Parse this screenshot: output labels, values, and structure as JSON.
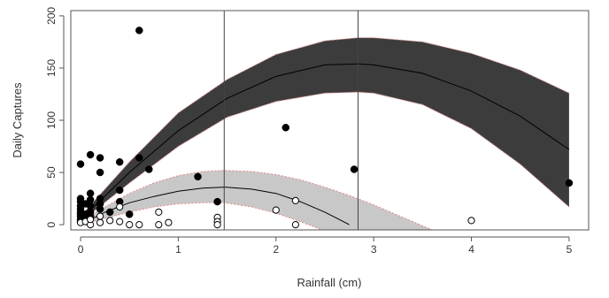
{
  "chart_data": {
    "type": "scatter",
    "title": "",
    "xlabel": "Rainfall (cm)",
    "ylabel": "Daily Captures",
    "xlim": [
      -0.1,
      5.2
    ],
    "ylim": [
      -5,
      205
    ],
    "x_ticks": [
      0,
      1,
      2,
      3,
      4,
      5
    ],
    "y_ticks": [
      0,
      50,
      100,
      150,
      200
    ],
    "grid": false,
    "legend": "none",
    "vertical_lines": [
      1.47,
      2.84
    ],
    "series": [
      {
        "marker": "filled-circle",
        "color": "#000000",
        "points": [
          [
            0,
            58
          ],
          [
            0,
            25
          ],
          [
            0,
            22
          ],
          [
            0,
            18
          ],
          [
            0,
            15
          ],
          [
            0,
            12
          ],
          [
            0,
            10
          ],
          [
            0,
            8
          ],
          [
            0,
            5
          ],
          [
            0,
            3
          ],
          [
            0.05,
            20
          ],
          [
            0.05,
            10
          ],
          [
            0.05,
            6
          ],
          [
            0.1,
            67
          ],
          [
            0.1,
            30
          ],
          [
            0.1,
            24
          ],
          [
            0.1,
            18
          ],
          [
            0.1,
            12
          ],
          [
            0.1,
            8
          ],
          [
            0.2,
            64
          ],
          [
            0.2,
            50
          ],
          [
            0.2,
            25
          ],
          [
            0.2,
            20
          ],
          [
            0.2,
            15
          ],
          [
            0.3,
            12
          ],
          [
            0.4,
            60
          ],
          [
            0.4,
            33
          ],
          [
            0.4,
            22
          ],
          [
            0.5,
            10
          ],
          [
            0.6,
            186
          ],
          [
            0.6,
            64
          ],
          [
            0.7,
            53
          ],
          [
            1.2,
            46
          ],
          [
            1.4,
            22
          ],
          [
            2.1,
            93
          ],
          [
            2.8,
            53
          ],
          [
            5.0,
            40
          ]
        ]
      },
      {
        "marker": "open-circle",
        "color": "#000000",
        "points": [
          [
            0,
            2
          ],
          [
            0.05,
            3
          ],
          [
            0.1,
            0
          ],
          [
            0.1,
            5
          ],
          [
            0.2,
            2
          ],
          [
            0.2,
            8
          ],
          [
            0.3,
            4
          ],
          [
            0.4,
            3
          ],
          [
            0.4,
            17
          ],
          [
            0.5,
            0
          ],
          [
            0.6,
            0
          ],
          [
            0.8,
            12
          ],
          [
            0.8,
            0
          ],
          [
            0.9,
            2
          ],
          [
            1.4,
            7
          ],
          [
            1.4,
            3
          ],
          [
            1.4,
            0
          ],
          [
            2.0,
            14
          ],
          [
            2.2,
            23
          ],
          [
            2.2,
            0
          ],
          [
            4.0,
            4
          ]
        ]
      }
    ],
    "fits": [
      {
        "band_color": "#3c3c3c",
        "line_color": "#000000",
        "curve": [
          [
            0,
            5
          ],
          [
            0.5,
            50
          ],
          [
            1,
            90
          ],
          [
            1.5,
            121
          ],
          [
            2,
            142
          ],
          [
            2.5,
            153
          ],
          [
            2.84,
            154
          ],
          [
            3,
            153
          ],
          [
            3.5,
            145
          ],
          [
            4,
            128
          ],
          [
            4.5,
            104
          ],
          [
            5,
            72
          ]
        ],
        "lower": [
          [
            0,
            3
          ],
          [
            0.5,
            40
          ],
          [
            1,
            75
          ],
          [
            1.5,
            103
          ],
          [
            2,
            118
          ],
          [
            2.5,
            126
          ],
          [
            2.84,
            127
          ],
          [
            3,
            126
          ],
          [
            3.5,
            115
          ],
          [
            4,
            92
          ],
          [
            4.5,
            58
          ],
          [
            5,
            17
          ]
        ],
        "upper": [
          [
            0,
            8
          ],
          [
            0.5,
            60
          ],
          [
            1,
            107
          ],
          [
            1.5,
            139
          ],
          [
            2,
            163
          ],
          [
            2.5,
            176
          ],
          [
            2.84,
            179
          ],
          [
            3,
            179
          ],
          [
            3.5,
            175
          ],
          [
            4,
            164
          ],
          [
            4.5,
            148
          ],
          [
            5,
            126
          ]
        ]
      },
      {
        "band_color": "#c8c8c8",
        "line_color": "#000000",
        "band_edge_color": "#e58a8a",
        "curve": [
          [
            0,
            0
          ],
          [
            0.25,
            12
          ],
          [
            0.5,
            21
          ],
          [
            0.75,
            27
          ],
          [
            1,
            32
          ],
          [
            1.25,
            35
          ],
          [
            1.47,
            36
          ],
          [
            1.75,
            34
          ],
          [
            2,
            30
          ],
          [
            2.25,
            22
          ],
          [
            2.5,
            12
          ],
          [
            2.75,
            0
          ]
        ],
        "lower": [
          [
            0,
            0
          ],
          [
            0.25,
            6
          ],
          [
            0.5,
            12
          ],
          [
            0.75,
            17
          ],
          [
            1,
            20
          ],
          [
            1.25,
            21
          ],
          [
            1.47,
            21
          ],
          [
            1.75,
            17
          ],
          [
            2,
            11
          ],
          [
            2.25,
            3
          ],
          [
            2.5,
            -6
          ],
          [
            2.75,
            -14
          ]
        ],
        "upper": [
          [
            0,
            3
          ],
          [
            0.25,
            17
          ],
          [
            0.5,
            30
          ],
          [
            0.75,
            40
          ],
          [
            1,
            47
          ],
          [
            1.25,
            51
          ],
          [
            1.47,
            52
          ],
          [
            1.75,
            51
          ],
          [
            2,
            48
          ],
          [
            2.25,
            43
          ],
          [
            2.5,
            36
          ],
          [
            2.75,
            28
          ],
          [
            3,
            19
          ],
          [
            3.25,
            9
          ],
          [
            3.5,
            -1
          ],
          [
            3.75,
            -11
          ]
        ]
      }
    ]
  }
}
